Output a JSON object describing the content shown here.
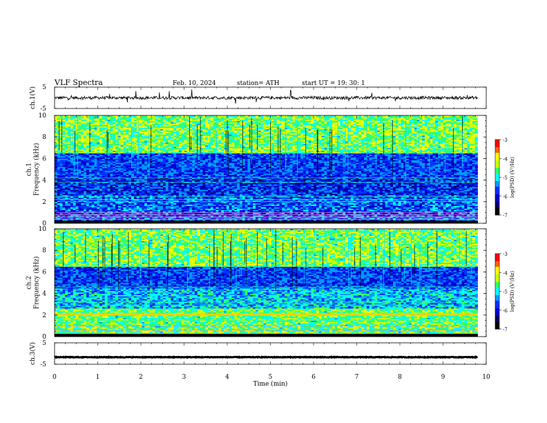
{
  "header": {
    "title": "VLF  Spectra",
    "date": "Feb. 10, 2024",
    "station": "station= ATH",
    "start": "start  UT  =   19: 30: 1"
  },
  "chart_data": [
    {
      "type": "line",
      "panel": "ch1-waveform",
      "ylabel": "ch.1(V)",
      "ylim": [
        -5,
        5
      ],
      "yticks": [
        "5",
        "-5"
      ],
      "x_range_min": [
        0,
        9.8
      ],
      "baseline_v": 0,
      "amplitude_v": 1.2,
      "spike_amplitude_v": 3.5,
      "line_color": "#000000"
    },
    {
      "type": "heatmap",
      "panel": "ch1-spectrogram",
      "ylabel": "ch.1\nFrequency (kHz)",
      "ylim": [
        0,
        10
      ],
      "yticks": [
        "0",
        "2",
        "4",
        "6",
        "8",
        "10"
      ],
      "x_range_min": [
        0,
        9.8
      ],
      "bands_khz": [
        0.2,
        0.35,
        0.5,
        0.6,
        0.8,
        1.0,
        2.0,
        2.2,
        2.5,
        3.8,
        4.2,
        6.5
      ],
      "colorbar": {
        "label": "log(PSD) (V²/Hz)",
        "range": [
          -7,
          -3
        ],
        "ticks": [
          "-3",
          "-4",
          "-5",
          "-6",
          "-7"
        ]
      }
    },
    {
      "type": "heatmap",
      "panel": "ch2-spectrogram",
      "ylabel": "ch.2\nFrequency (kHz)",
      "ylim": [
        0,
        10
      ],
      "yticks": [
        "0",
        "2",
        "4",
        "6",
        "8",
        "10"
      ],
      "x_range_min": [
        0,
        9.8
      ],
      "bands_khz": [
        0.3,
        0.6,
        1.0,
        1.5,
        2.0,
        2.1,
        2.5,
        3.2,
        3.6,
        4.6,
        6.5
      ],
      "colorbar": {
        "label": "log(PSD) (V²/Hz)",
        "range": [
          -7,
          -3
        ],
        "ticks": [
          "-3",
          "-4",
          "-5",
          "-6",
          "-7"
        ]
      }
    },
    {
      "type": "line",
      "panel": "ch3-waveform",
      "ylabel": "ch.3(V)",
      "ylim": [
        -5,
        5
      ],
      "yticks": [
        "5",
        "-5"
      ],
      "x_range_min": [
        0,
        9.8
      ],
      "baseline_v": -1.7,
      "amplitude_v": 0.25,
      "line_color": "#000000"
    }
  ],
  "x_axis": {
    "label": "Time  (min)",
    "range": [
      0,
      10
    ],
    "ticks": [
      "0",
      "1",
      "2",
      "3",
      "4",
      "5",
      "6",
      "7",
      "8",
      "9",
      "10"
    ]
  },
  "colormap": [
    "#000000",
    "#000066",
    "#0000cc",
    "#0033ff",
    "#0099ff",
    "#00ffff",
    "#33ff66",
    "#ccff00",
    "#ffff00",
    "#ff6600",
    "#ff0000",
    "#ffffff"
  ]
}
